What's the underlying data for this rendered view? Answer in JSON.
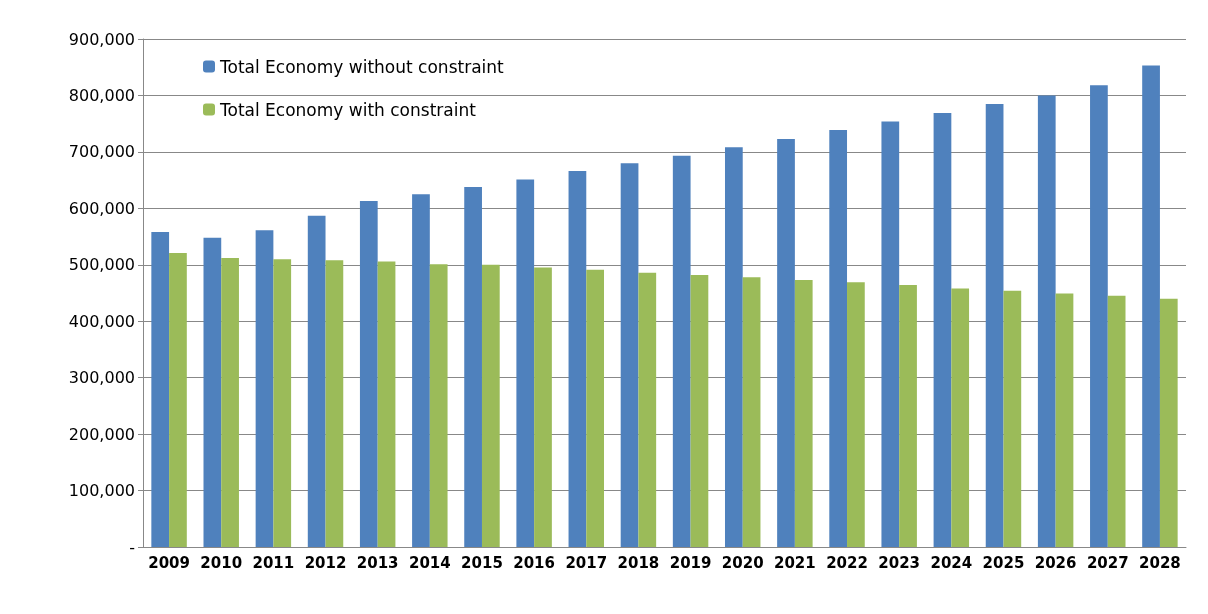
{
  "chart_data": {
    "type": "bar",
    "categories": [
      "2009",
      "2010",
      "2011",
      "2012",
      "2013",
      "2014",
      "2015",
      "2016",
      "2017",
      "2018",
      "2019",
      "2020",
      "2021",
      "2022",
      "2023",
      "2024",
      "2025",
      "2026",
      "2027",
      "2028"
    ],
    "series": [
      {
        "name": "Total Economy without constraint",
        "color": "#4f81bd",
        "values": [
          558000,
          548000,
          561000,
          587000,
          613000,
          625000,
          638000,
          651000,
          666000,
          680000,
          693000,
          708000,
          723000,
          739000,
          754000,
          769000,
          785000,
          800000,
          818000,
          853000
        ]
      },
      {
        "name": "Total Economy with constraint",
        "color": "#9bbb59",
        "values": [
          521000,
          512000,
          510000,
          508000,
          506000,
          501000,
          500000,
          495000,
          491000,
          486000,
          482000,
          478000,
          473000,
          469000,
          464000,
          458000,
          454000,
          449000,
          445000,
          440000
        ]
      }
    ],
    "ylim": [
      0,
      900000
    ],
    "yticks": [
      {
        "value": 0,
        "label": "-"
      },
      {
        "value": 100000,
        "label": "100,000"
      },
      {
        "value": 200000,
        "label": "200,000"
      },
      {
        "value": 300000,
        "label": "300,000"
      },
      {
        "value": 400000,
        "label": "400,000"
      },
      {
        "value": 500000,
        "label": "500,000"
      },
      {
        "value": 600000,
        "label": "600,000"
      },
      {
        "value": 700000,
        "label": "700,000"
      },
      {
        "value": 800000,
        "label": "800,000"
      },
      {
        "value": 900000,
        "label": "900,000"
      }
    ],
    "grid": "y",
    "legend": "top left"
  }
}
